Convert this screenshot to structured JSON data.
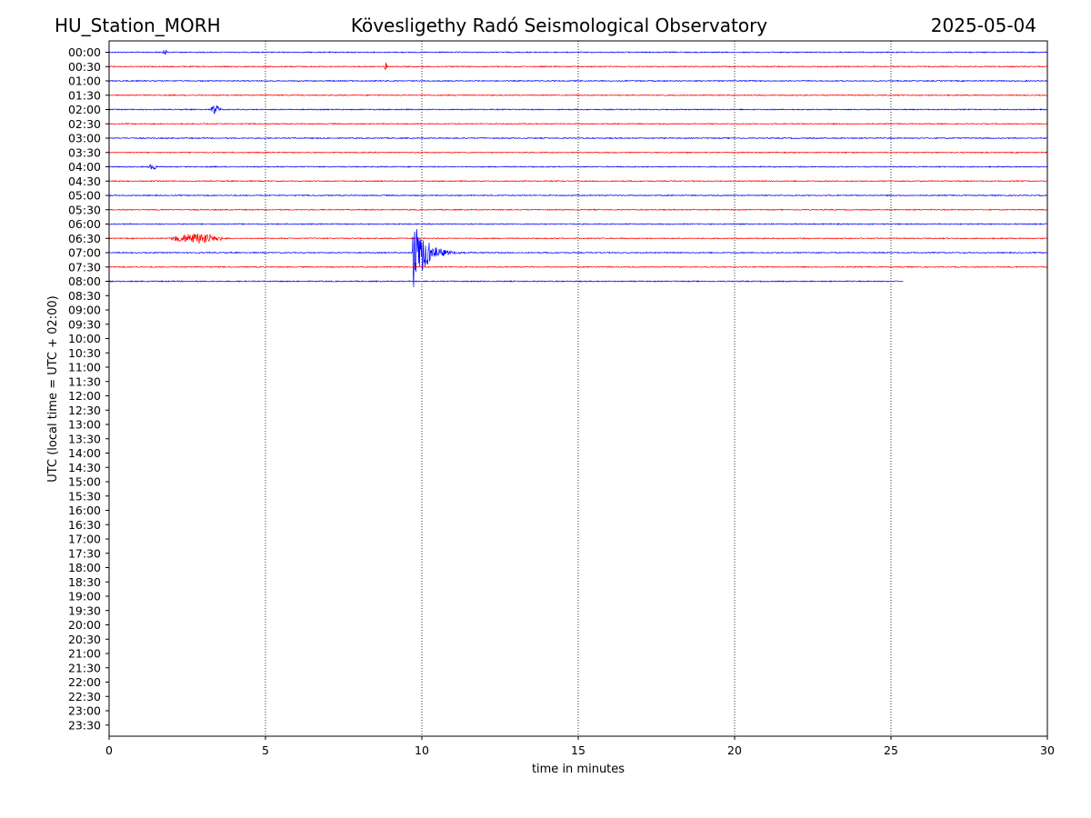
{
  "header": {
    "station": "HU_Station_MORH",
    "observatory": "Kövesligethy Radó Seismological Observatory",
    "date": "2025-05-04"
  },
  "chart_data": {
    "type": "line",
    "title": "Kövesligethy Radó Seismological Observatory",
    "xlabel": "time in minutes",
    "ylabel": "UTC (local time = UTC + 02:00)",
    "xlim": [
      0,
      30
    ],
    "xticks": [
      "0",
      "5",
      "10",
      "15",
      "20",
      "25",
      "30"
    ],
    "xtick_values": [
      0,
      5,
      10,
      15,
      20,
      25,
      30
    ],
    "vertical_gridlines": [
      5,
      10,
      15,
      20,
      25
    ],
    "row_labels": [
      "00:00",
      "00:30",
      "01:00",
      "01:30",
      "02:00",
      "02:30",
      "03:00",
      "03:30",
      "04:00",
      "04:30",
      "05:00",
      "05:30",
      "06:00",
      "06:30",
      "07:00",
      "07:30",
      "08:00",
      "08:30",
      "09:00",
      "09:30",
      "10:00",
      "10:30",
      "11:00",
      "11:30",
      "12:00",
      "12:30",
      "13:00",
      "13:30",
      "14:00",
      "14:30",
      "15:00",
      "15:30",
      "16:00",
      "16:30",
      "17:00",
      "17:30",
      "18:00",
      "18:30",
      "19:00",
      "19:30",
      "20:00",
      "20:30",
      "21:00",
      "21:30",
      "22:00",
      "22:30",
      "23:00",
      "23:30"
    ],
    "colors": [
      "#0000ff",
      "#ff0000"
    ],
    "traces": [
      {
        "row": "00:00",
        "end_minute": 30,
        "events": [
          {
            "start": 1.7,
            "end": 1.9,
            "amp": 0.2
          }
        ]
      },
      {
        "row": "00:30",
        "end_minute": 30,
        "events": [
          {
            "start": 8.8,
            "end": 8.9,
            "amp": 0.3
          }
        ]
      },
      {
        "row": "01:00",
        "end_minute": 30,
        "events": []
      },
      {
        "row": "01:30",
        "end_minute": 30,
        "events": []
      },
      {
        "row": "02:00",
        "end_minute": 30,
        "events": [
          {
            "start": 3.2,
            "end": 3.6,
            "amp": 0.3
          }
        ]
      },
      {
        "row": "02:30",
        "end_minute": 30,
        "events": []
      },
      {
        "row": "03:00",
        "end_minute": 30,
        "events": []
      },
      {
        "row": "03:30",
        "end_minute": 30,
        "events": []
      },
      {
        "row": "04:00",
        "end_minute": 30,
        "events": [
          {
            "start": 1.2,
            "end": 1.6,
            "amp": 0.2
          }
        ]
      },
      {
        "row": "04:30",
        "end_minute": 30,
        "events": []
      },
      {
        "row": "05:00",
        "end_minute": 30,
        "events": []
      },
      {
        "row": "05:30",
        "end_minute": 30,
        "events": []
      },
      {
        "row": "06:00",
        "end_minute": 30,
        "events": []
      },
      {
        "row": "06:30",
        "end_minute": 30,
        "events": [
          {
            "start": 1.8,
            "end": 3.8,
            "amp": 0.35
          }
        ]
      },
      {
        "row": "07:00",
        "end_minute": 30,
        "events": [
          {
            "start": 9.7,
            "end": 12.5,
            "amp": 2.8
          }
        ]
      },
      {
        "row": "07:30",
        "end_minute": 30,
        "events": []
      },
      {
        "row": "08:00",
        "end_minute": 25.4,
        "events": []
      }
    ]
  }
}
